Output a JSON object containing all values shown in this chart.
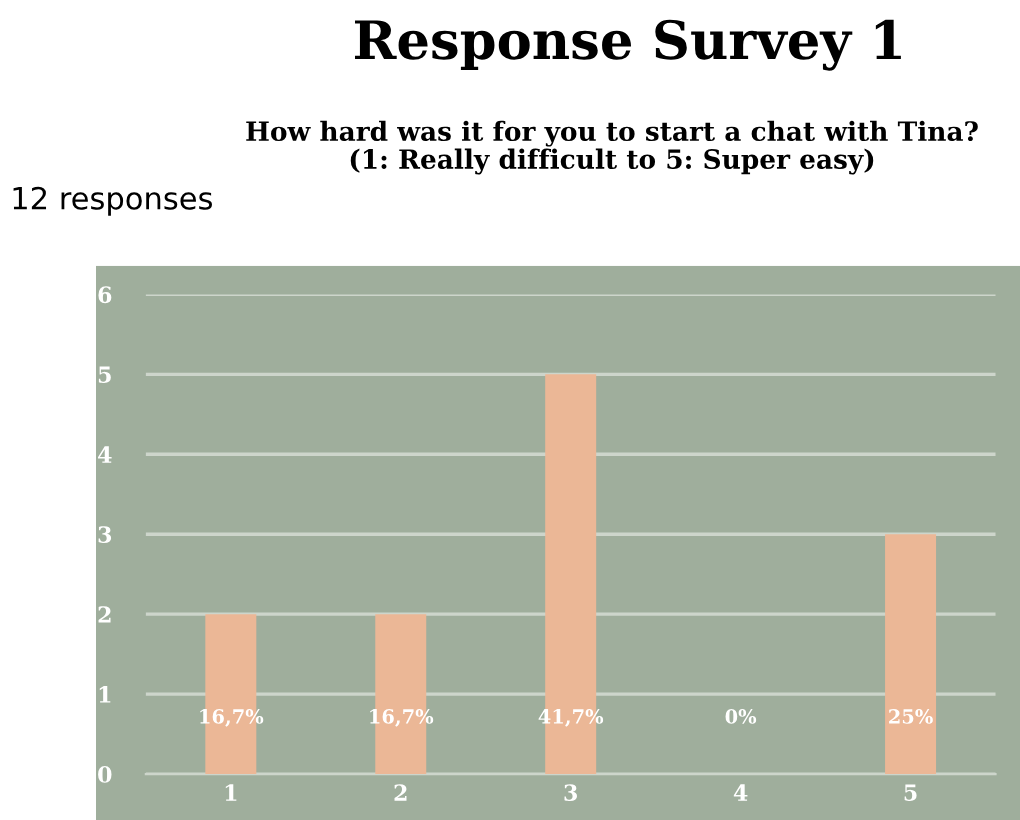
{
  "chart_data": {
    "type": "bar",
    "title": "Response Survey 1",
    "subtitle": "How hard was it for you to start a chat with Tina?\n(1: Really difficult to 5: Super easy)",
    "annotations": [
      "12 responses",
      "16,7%",
      "16,7%",
      "41,7%",
      "0%",
      "25%"
    ],
    "categories": [
      "1",
      "2",
      "3",
      "4",
      "5"
    ],
    "values": [
      2,
      2,
      5,
      0,
      3
    ],
    "color": "#ebb796",
    "ylim": [
      0,
      6
    ],
    "yticks": [
      0,
      1,
      2,
      3,
      4,
      5,
      6
    ],
    "grid": "y"
  }
}
